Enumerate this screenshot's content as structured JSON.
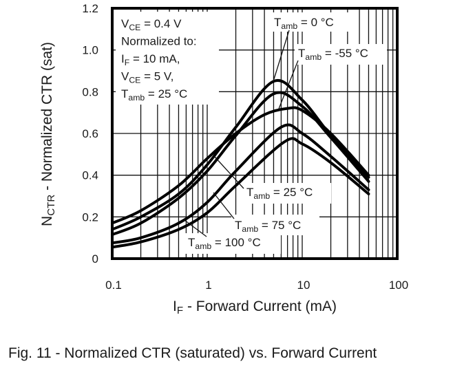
{
  "chart_data": {
    "type": "line",
    "title": "",
    "xlabel": {
      "main": "I",
      "sub": "F",
      "rest": " - Forward Current (mA)"
    },
    "ylabel": {
      "main": "N",
      "sub": "CTR",
      "rest": " - Normalized CTR (sat)"
    },
    "x_scale": "log",
    "xlim": [
      0.1,
      100
    ],
    "ylim": [
      0,
      1.2
    ],
    "grid": true,
    "x_ticks": [
      "0.1",
      "1",
      "10",
      "100"
    ],
    "x_tick_values": [
      0.1,
      1,
      10,
      100
    ],
    "y_ticks": [
      "0",
      "0.2",
      "0.4",
      "0.6",
      "0.8",
      "1.0",
      "1.2"
    ],
    "y_tick_values": [
      0,
      0.2,
      0.4,
      0.6,
      0.8,
      1.0,
      1.2
    ],
    "conditions": [
      {
        "main": "V",
        "sub": "CE",
        "rest": " = 0.4 V"
      },
      {
        "main": "Normalized to:",
        "sub": "",
        "rest": ""
      },
      {
        "main": "I",
        "sub": "F",
        "rest": " = 10 mA,"
      },
      {
        "main": "V",
        "sub": "CE",
        "rest": " = 5 V,"
      },
      {
        "main": "T",
        "sub": "amb",
        "rest": " = 25 °C"
      }
    ],
    "series": [
      {
        "name": {
          "main": "T",
          "sub": "amb",
          "rest": " = 0 °C"
        },
        "x": [
          0.1,
          0.2,
          0.5,
          1,
          2,
          5,
          10,
          20,
          50
        ],
        "y": [
          0.14,
          0.2,
          0.31,
          0.45,
          0.63,
          0.85,
          0.76,
          0.59,
          0.39
        ]
      },
      {
        "name": {
          "main": "T",
          "sub": "amb",
          "rest": " = -55 °C"
        },
        "x": [
          0.1,
          0.2,
          0.5,
          1,
          2,
          5,
          10,
          20,
          50
        ],
        "y": [
          0.115,
          0.17,
          0.29,
          0.42,
          0.59,
          0.79,
          0.73,
          0.58,
          0.37
        ]
      },
      {
        "name": {
          "main": "T",
          "sub": "amb",
          "rest": " = 25 °C"
        },
        "x": [
          0.1,
          0.2,
          0.5,
          1,
          2,
          4,
          7,
          10,
          20,
          50
        ],
        "y": [
          0.17,
          0.23,
          0.35,
          0.48,
          0.6,
          0.69,
          0.72,
          0.71,
          0.6,
          0.4
        ]
      },
      {
        "name": {
          "main": "T",
          "sub": "amb",
          "rest": " = 75 °C"
        },
        "x": [
          0.1,
          0.2,
          0.5,
          1,
          2,
          6,
          10,
          20,
          50
        ],
        "y": [
          0.075,
          0.1,
          0.17,
          0.27,
          0.42,
          0.63,
          0.6,
          0.49,
          0.33
        ]
      },
      {
        "name": {
          "main": "T",
          "sub": "amb",
          "rest": " = 100 °C"
        },
        "x": [
          0.1,
          0.2,
          0.5,
          1,
          2,
          6.5,
          10,
          20,
          50
        ],
        "y": [
          0.055,
          0.08,
          0.14,
          0.22,
          0.35,
          0.56,
          0.55,
          0.46,
          0.31
        ]
      }
    ]
  },
  "caption": "Fig. 11 - Normalized CTR (saturated) vs. Forward Current"
}
